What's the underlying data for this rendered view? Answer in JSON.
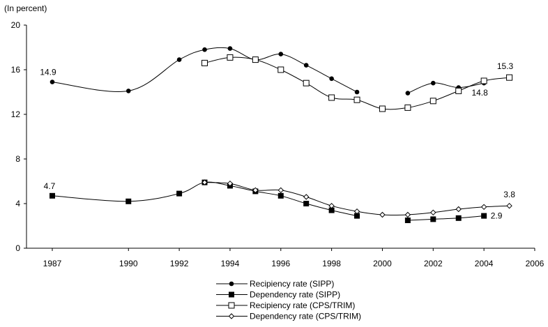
{
  "chart_data": {
    "type": "line",
    "unit_label": "(In percent)",
    "ylim": [
      0,
      20
    ],
    "yticks": [
      0,
      4,
      8,
      12,
      16,
      20
    ],
    "xticks": [
      1987,
      1990,
      1992,
      1994,
      1996,
      1998,
      2000,
      2002,
      2004,
      2006
    ],
    "grid": false,
    "legend_position": "bottom",
    "series": [
      {
        "name": "Recipiency rate (SIPP)",
        "marker": "filled-circle",
        "x": [
          1987,
          1990,
          1992,
          1993,
          1994,
          1995,
          1996,
          1997,
          1998,
          1999,
          2000,
          2001,
          2002,
          2003,
          2004
        ],
        "y": [
          14.9,
          14.1,
          16.9,
          17.8,
          17.9,
          16.9,
          17.4,
          16.4,
          15.2,
          14.0,
          null,
          13.9,
          14.8,
          14.4,
          14.8
        ]
      },
      {
        "name": "Dependency rate (SIPP)",
        "marker": "filled-square",
        "x": [
          1987,
          1990,
          1992,
          1993,
          1994,
          1995,
          1996,
          1997,
          1998,
          1999,
          2000,
          2001,
          2002,
          2003,
          2004
        ],
        "y": [
          4.7,
          4.2,
          4.9,
          5.9,
          5.6,
          5.1,
          4.7,
          4.0,
          3.4,
          2.9,
          null,
          2.5,
          2.6,
          2.7,
          2.9
        ]
      },
      {
        "name": "Recipiency rate (CPS/TRIM)",
        "marker": "open-square",
        "x": [
          1993,
          1994,
          1995,
          1996,
          1997,
          1998,
          1999,
          2000,
          2001,
          2002,
          2003,
          2004,
          2005
        ],
        "y": [
          16.6,
          17.1,
          16.9,
          16.0,
          14.8,
          13.5,
          13.3,
          12.5,
          12.6,
          13.2,
          14.1,
          15.0,
          15.3
        ]
      },
      {
        "name": "Dependency rate (CPS/TRIM)",
        "marker": "open-diamond",
        "x": [
          1993,
          1994,
          1995,
          1996,
          1997,
          1998,
          1999,
          2000,
          2001,
          2002,
          2003,
          2004,
          2005
        ],
        "y": [
          5.9,
          5.8,
          5.2,
          5.2,
          4.6,
          3.8,
          3.3,
          3.0,
          3.0,
          3.2,
          3.5,
          3.7,
          3.8
        ]
      }
    ],
    "annotations": [
      {
        "text": "14.9",
        "x": 1987,
        "y": 14.9
      },
      {
        "text": "4.7",
        "x": 1987,
        "y": 4.7
      },
      {
        "text": "15.3",
        "x": 2005,
        "y": 15.3
      },
      {
        "text": "14.8",
        "x": 2004,
        "y": 14.8
      },
      {
        "text": "3.8",
        "x": 2005,
        "y": 3.8
      },
      {
        "text": "2.9",
        "x": 2004,
        "y": 2.9
      }
    ]
  }
}
